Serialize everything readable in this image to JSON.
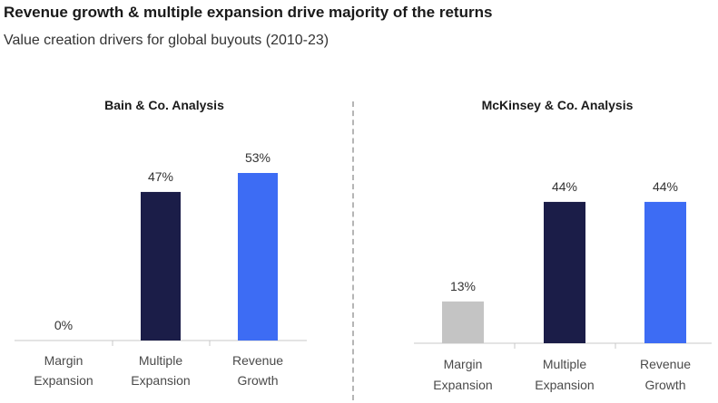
{
  "title": "Revenue growth & multiple expansion drive majority of the returns",
  "subtitle": "Value creation drivers for global buyouts (2010-23)",
  "colors": {
    "margin_bain": "#ffffff",
    "margin_mckinsey": "#c4c4c4",
    "multiple": "#1b1d48",
    "revenue": "#3d6cf4",
    "label": "#333333"
  },
  "chart_data": [
    {
      "type": "bar",
      "title": "Bain & Co. Analysis",
      "categories": [
        [
          "Margin",
          "Expansion"
        ],
        [
          "Multiple",
          "Expansion"
        ],
        [
          "Revenue",
          "Growth"
        ]
      ],
      "values": [
        0,
        47,
        53
      ],
      "value_labels": [
        "0%",
        "47%",
        "53%"
      ],
      "colors": [
        "#ffffff",
        "#1b1d48",
        "#3d6cf4"
      ],
      "ylim": [
        0,
        53
      ]
    },
    {
      "type": "bar",
      "title": "McKinsey & Co. Analysis",
      "categories": [
        [
          "Margin",
          "Expansion"
        ],
        [
          "Multiple",
          "Expansion"
        ],
        [
          "Revenue",
          "Growth"
        ]
      ],
      "values": [
        13,
        44,
        44
      ],
      "value_labels": [
        "13%",
        "44%",
        "44%"
      ],
      "colors": [
        "#c4c4c4",
        "#1b1d48",
        "#3d6cf4"
      ],
      "ylim": [
        0,
        53
      ]
    }
  ]
}
